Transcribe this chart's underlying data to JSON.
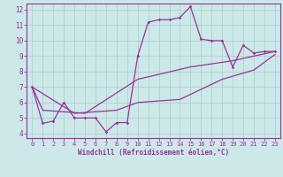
{
  "xlabel": "Windchill (Refroidissement éolien,°C)",
  "background_color": "#cce8e8",
  "grid_color": "#aacccc",
  "line_color": "#993399",
  "spine_color": "#993399",
  "xlim": [
    -0.5,
    23.5
  ],
  "ylim": [
    3.7,
    12.4
  ],
  "xticks": [
    0,
    1,
    2,
    3,
    4,
    5,
    6,
    7,
    8,
    9,
    10,
    11,
    12,
    13,
    14,
    15,
    16,
    17,
    18,
    19,
    20,
    21,
    22,
    23
  ],
  "yticks": [
    4,
    5,
    6,
    7,
    8,
    9,
    10,
    11,
    12
  ],
  "series1": [
    [
      0,
      7.0
    ],
    [
      1,
      4.65
    ],
    [
      2,
      4.8
    ],
    [
      3,
      6.0
    ],
    [
      4,
      5.0
    ],
    [
      5,
      5.0
    ],
    [
      6,
      5.0
    ],
    [
      7,
      4.1
    ],
    [
      8,
      4.7
    ],
    [
      9,
      4.7
    ],
    [
      10,
      9.0
    ],
    [
      11,
      11.2
    ],
    [
      12,
      11.35
    ],
    [
      13,
      11.35
    ],
    [
      14,
      11.5
    ],
    [
      15,
      12.2
    ],
    [
      16,
      10.1
    ],
    [
      17,
      10.0
    ],
    [
      18,
      10.0
    ],
    [
      19,
      8.3
    ],
    [
      20,
      9.7
    ],
    [
      21,
      9.2
    ],
    [
      22,
      9.3
    ],
    [
      23,
      9.3
    ]
  ],
  "line2": [
    [
      0,
      7.0
    ],
    [
      1,
      5.5
    ],
    [
      5,
      5.3
    ],
    [
      10,
      7.5
    ],
    [
      15,
      8.3
    ],
    [
      19,
      8.7
    ],
    [
      23,
      9.3
    ]
  ],
  "line3": [
    [
      0,
      7.0
    ],
    [
      4,
      5.3
    ],
    [
      8,
      5.5
    ],
    [
      10,
      6.0
    ],
    [
      14,
      6.2
    ],
    [
      18,
      7.5
    ],
    [
      21,
      8.1
    ],
    [
      23,
      9.1
    ]
  ]
}
